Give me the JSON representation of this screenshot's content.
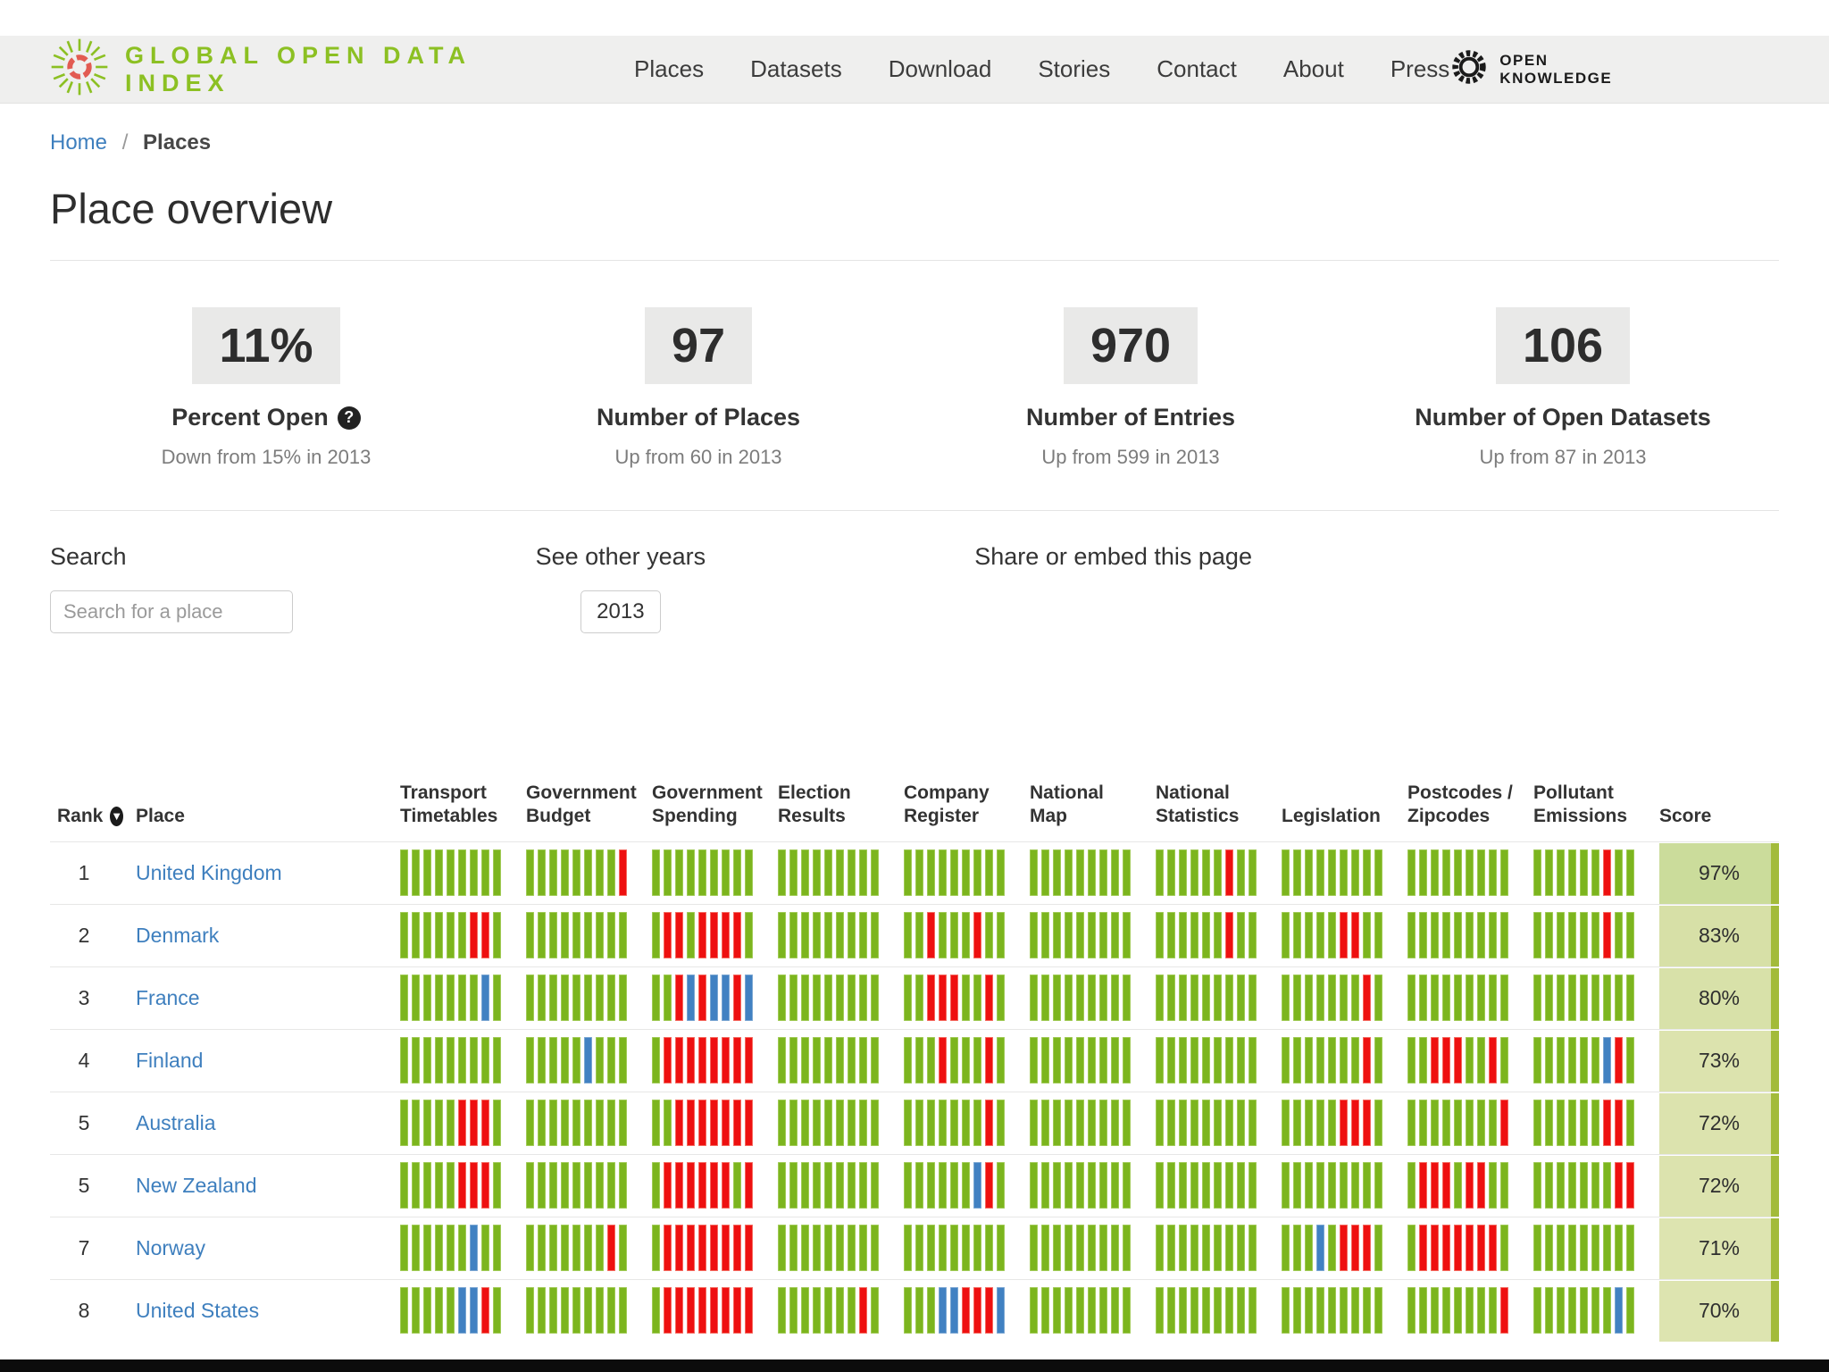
{
  "nav": {
    "brand": "GLOBAL OPEN DATA INDEX",
    "items": [
      "Places",
      "Datasets",
      "Download",
      "Stories",
      "Contact",
      "About",
      "Press"
    ],
    "right_logo": "OPEN KNOWLEDGE"
  },
  "breadcrumb": {
    "home": "Home",
    "separator": "/",
    "current": "Places"
  },
  "page_title": "Place overview",
  "stats": [
    {
      "value": "11%",
      "label": "Percent Open",
      "help_icon": "question-mark",
      "sub": "Down from 15% in 2013"
    },
    {
      "value": "97",
      "label": "Number of Places",
      "sub": "Up from 60 in 2013"
    },
    {
      "value": "970",
      "label": "Number of Entries",
      "sub": "Up from 599 in 2013"
    },
    {
      "value": "106",
      "label": "Number of Open Datasets",
      "sub": "Up from 87 in 2013"
    }
  ],
  "controls": {
    "search_label": "Search",
    "search_placeholder": "Search for a place",
    "years_label": "See other years",
    "year_button": "2013",
    "share_label": "Share or embed this page"
  },
  "table": {
    "rank_header": "Rank",
    "place_header": "Place",
    "score_header": "Score",
    "sort_icon": "arrow-down",
    "dataset_columns": [
      "Transport Timetables",
      "Government Budget",
      "Government Spending",
      "Election Results",
      "Company Register",
      "National Map",
      "National Statistics",
      "Legislation",
      "Postcodes / Zipcodes",
      "Pollutant Emissions"
    ],
    "bar_colors": {
      "g": "#7cb51e",
      "r": "#ee1010",
      "b": "#4181c2"
    },
    "bar_meaning": {
      "g": "open",
      "r": "closed",
      "b": "partial"
    },
    "score_strip_color": "#a3bb3a",
    "rows": [
      {
        "rank": "1",
        "place": "United Kingdom",
        "score": "97%",
        "score_bg": "#cbdc9b",
        "cells": [
          "ggggggggg",
          "ggggggggr",
          "ggggggggg",
          "ggggggggg",
          "ggggggggg",
          "ggggggggg",
          "ggggggrgg",
          "ggggggggg",
          "ggggggggg",
          "ggggggrgg"
        ]
      },
      {
        "rank": "2",
        "place": "Denmark",
        "score": "83%",
        "score_bg": "#d7e0a7",
        "cells": [
          "ggggggrrg",
          "ggggggggg",
          "grrgrrrrg",
          "ggggggggg",
          "ggrgggrgg",
          "ggggggggg",
          "ggggggrgg",
          "gggggrrgg",
          "ggggggggg",
          "ggggggrgg"
        ]
      },
      {
        "rank": "3",
        "place": "France",
        "score": "80%",
        "score_bg": "#d8e1a9",
        "cells": [
          "gggggggbg",
          "ggggggggg",
          "ggrbrbbrb",
          "ggggggggg",
          "ggrrrggrg",
          "ggggggggg",
          "ggggggggg",
          "gggggggrg",
          "ggggggggg",
          "ggggggggg"
        ]
      },
      {
        "rank": "4",
        "place": "Finland",
        "score": "73%",
        "score_bg": "#dce3ae",
        "cells": [
          "ggggggggg",
          "gggggbggg",
          "grrrrrrrr",
          "ggggggggg",
          "gggrgggrg",
          "ggggggggg",
          "ggggggggg",
          "gggggggrg",
          "ggrrrggrg",
          "ggggggbrg"
        ]
      },
      {
        "rank": "5",
        "place": "Australia",
        "score": "72%",
        "score_bg": "#dce3ae",
        "cells": [
          "gggggrrrg",
          "ggggggggg",
          "ggrrrrrrr",
          "ggggggggg",
          "gggggggrg",
          "ggggggggg",
          "ggggggggg",
          "gggggrrrg",
          "ggggggggr",
          "ggggggrrg"
        ]
      },
      {
        "rank": "5",
        "place": "New Zealand",
        "score": "72%",
        "score_bg": "#dce3ae",
        "cells": [
          "gggggrrrg",
          "ggggggggg",
          "grrrrrrgr",
          "ggggggggg",
          "ggggggbrg",
          "ggggggggg",
          "ggggggggg",
          "ggggggggg",
          "grrrgrrgg",
          "gggggggrr"
        ]
      },
      {
        "rank": "7",
        "place": "Norway",
        "score": "71%",
        "score_bg": "#dde4b0",
        "cells": [
          "ggggggbgg",
          "gggggggrg",
          "grrrrrrrr",
          "ggggggggg",
          "ggggggggg",
          "ggggggggg",
          "ggggggggg",
          "gggbgrrrg",
          "grrrrrrrg",
          "ggggggggg"
        ]
      },
      {
        "rank": "8",
        "place": "United States",
        "score": "70%",
        "score_bg": "#dde4b0",
        "cells": [
          "gggggbbrg",
          "ggggggggg",
          "grrrrrrrr",
          "gggggggrg",
          "gggbbrrrb",
          "ggggggggg",
          "ggggggggg",
          "ggggggggg",
          "ggggggggr",
          "gggggggbg"
        ]
      }
    ]
  }
}
